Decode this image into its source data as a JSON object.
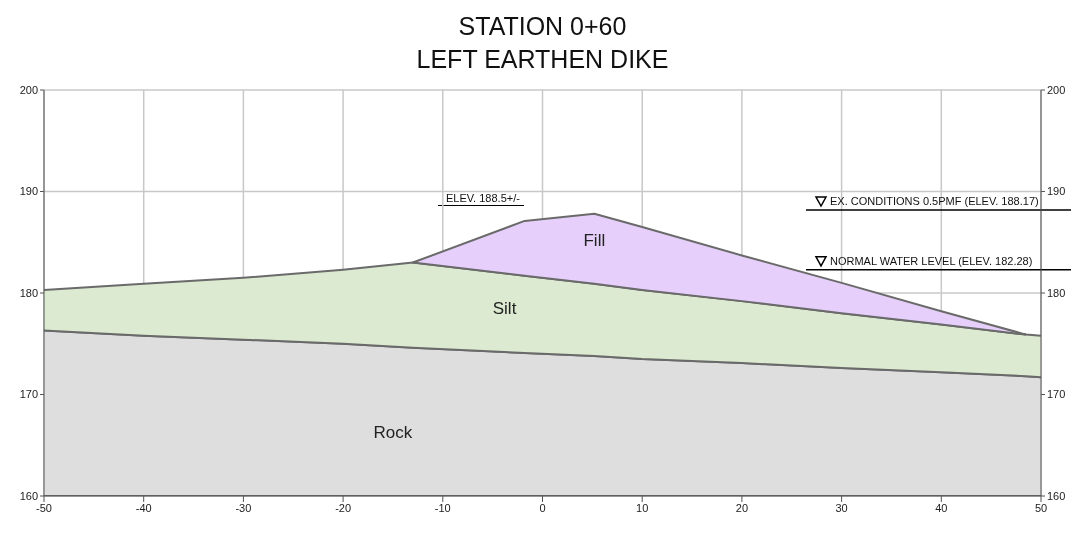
{
  "chart_data": {
    "type": "area",
    "title": "STATION 0+60",
    "subtitle": "LEFT EARTHEN DIKE",
    "x": [
      -50,
      -40,
      -30,
      -20,
      -13,
      -1.8,
      5.2,
      10,
      20,
      30,
      40,
      48.5,
      50
    ],
    "series": [
      {
        "name": "Rock",
        "color": "#dedede",
        "values": [
          176.3,
          175.8,
          175.4,
          175.0,
          174.6,
          174.1,
          173.8,
          173.5,
          173.1,
          172.6,
          172.2,
          171.8,
          171.7
        ]
      },
      {
        "name": "Silt",
        "color": "#dbead0",
        "values": [
          180.3,
          180.9,
          181.5,
          182.3,
          183.0,
          181.7,
          180.9,
          180.3,
          179.2,
          178.0,
          176.9,
          175.9,
          175.8
        ]
      },
      {
        "name": "Fill",
        "color": "#e6d0fb",
        "values": [
          null,
          null,
          null,
          null,
          183.0,
          187.1,
          187.8,
          186.5,
          183.7,
          181.0,
          178.2,
          175.9,
          null
        ]
      }
    ],
    "xlim": [
      -50,
      50
    ],
    "xticks": [
      -50,
      -40,
      -30,
      -20,
      -10,
      0,
      10,
      20,
      30,
      40,
      50
    ],
    "ylim": [
      160,
      200
    ],
    "yticks": [
      160,
      170,
      180,
      190,
      200
    ],
    "y2lim": [
      160,
      200
    ],
    "y2ticks": [
      160,
      170,
      180,
      190,
      200
    ],
    "grid": true,
    "legend": false,
    "ref_lines": [
      {
        "axis": "y",
        "value": 188.17,
        "label": "EX. CONDITIONS 0.5PMF (ELEV. 188.17)",
        "color": "#000000"
      },
      {
        "axis": "y",
        "value": 182.28,
        "label": "NORMAL WATER LEVEL (ELEV. 182.28)",
        "color": "#000000"
      }
    ],
    "annotations": [
      "ELEV. 188.5+/-"
    ]
  }
}
